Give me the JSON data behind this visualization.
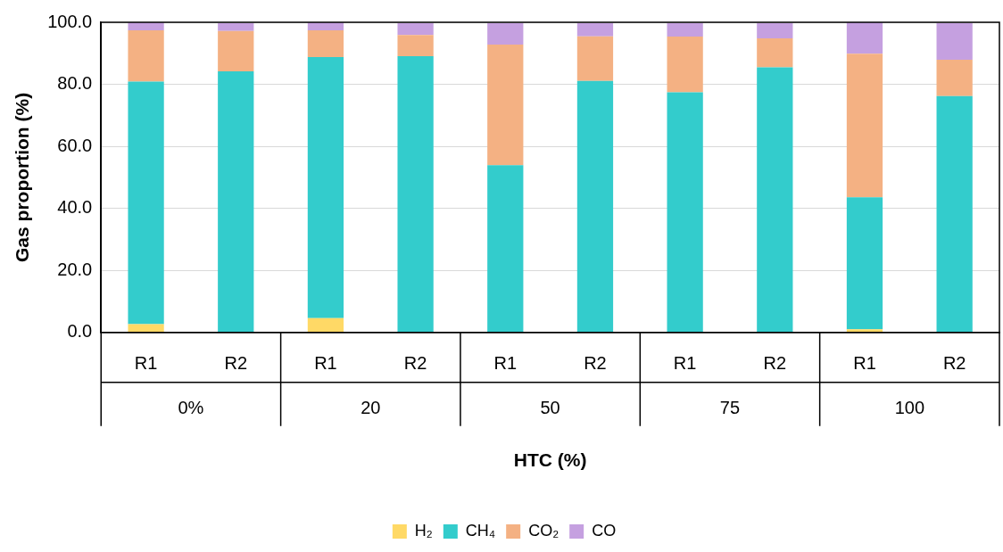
{
  "chart_data": {
    "type": "bar",
    "stacked": true,
    "xlabel": "HTC (%)",
    "ylabel": "Gas proportion (%)",
    "categories": [
      "R1",
      "R2",
      "R1",
      "R2",
      "R1",
      "R2",
      "R1",
      "R2",
      "R1",
      "R2"
    ],
    "annotations": [
      "0%",
      "20",
      "50",
      "75",
      "100"
    ],
    "series": [
      {
        "name": "H₂",
        "color": "#ffd966",
        "values": [
          2.7,
          null,
          4.6,
          null,
          null,
          null,
          null,
          null,
          1.0,
          null
        ]
      },
      {
        "name": "CH₄",
        "color": "#33cccc",
        "values": [
          78.2,
          84.2,
          84.2,
          89.1,
          53.9,
          81.1,
          77.4,
          85.5,
          42.6,
          76.2
        ]
      },
      {
        "name": "CO₂",
        "color": "#f4b183",
        "values": [
          16.5,
          13.0,
          8.6,
          6.8,
          38.9,
          14.4,
          18.0,
          9.3,
          46.3,
          11.7
        ]
      },
      {
        "name": "CO",
        "color": "#c5a0e0",
        "values": [
          2.6,
          2.5,
          2.6,
          3.8,
          6.9,
          4.2,
          4.3,
          4.9,
          10.1,
          11.8
        ]
      }
    ],
    "ylim": [
      0,
      100
    ],
    "yticks": [
      {
        "value": 0,
        "label": "0.0"
      },
      {
        "value": 20,
        "label": "20.0"
      },
      {
        "value": 40,
        "label": "40.0"
      },
      {
        "value": 60,
        "label": "60.0"
      },
      {
        "value": 80,
        "label": "80.0"
      },
      {
        "value": 100,
        "label": "100.0"
      }
    ],
    "grid": "y",
    "legend": "bottom"
  }
}
